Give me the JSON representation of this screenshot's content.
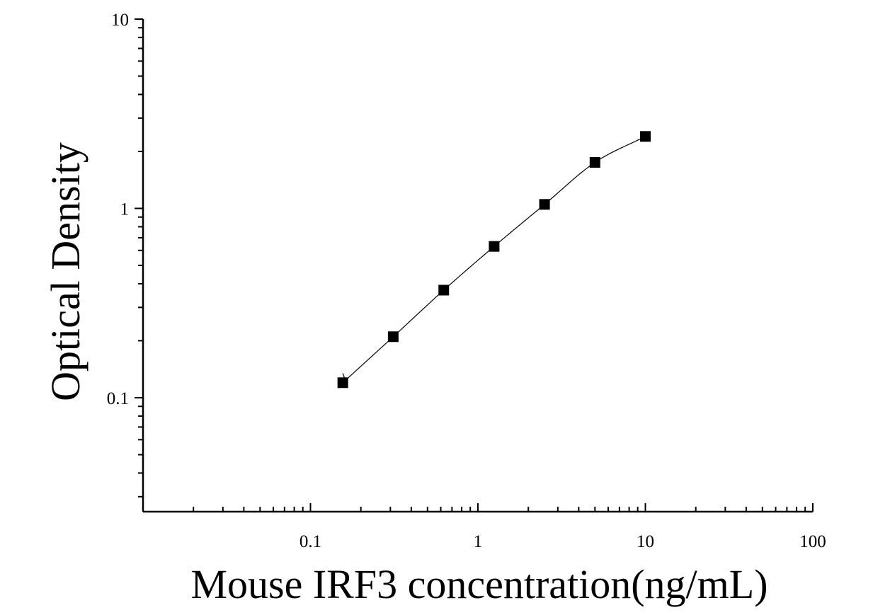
{
  "chart_data": {
    "type": "scatter",
    "title": "",
    "xlabel": "Mouse IRF3 concentration(ng/mL)",
    "ylabel": "Optical Density",
    "x_scale": "log",
    "y_scale": "log",
    "xlim": [
      0.01,
      100
    ],
    "ylim": [
      0.025,
      10
    ],
    "x_ticks": [
      {
        "value": 0.1,
        "label": "0.1"
      },
      {
        "value": 1,
        "label": "1"
      },
      {
        "value": 10,
        "label": "10"
      },
      {
        "value": 100,
        "label": "100"
      }
    ],
    "y_ticks": [
      {
        "value": 0.1,
        "label": "0.1"
      },
      {
        "value": 1,
        "label": "1"
      },
      {
        "value": 10,
        "label": "10"
      }
    ],
    "grid": false,
    "series": [
      {
        "marker": "square",
        "color": "#000000",
        "x": [
          0.156,
          0.312,
          0.625,
          1.25,
          2.5,
          5,
          10
        ],
        "y": [
          0.12,
          0.21,
          0.37,
          0.63,
          1.05,
          1.75,
          2.4
        ]
      }
    ],
    "fit_curve": {
      "type": "smooth fit through points",
      "x_range": [
        0.156,
        10
      ]
    }
  }
}
